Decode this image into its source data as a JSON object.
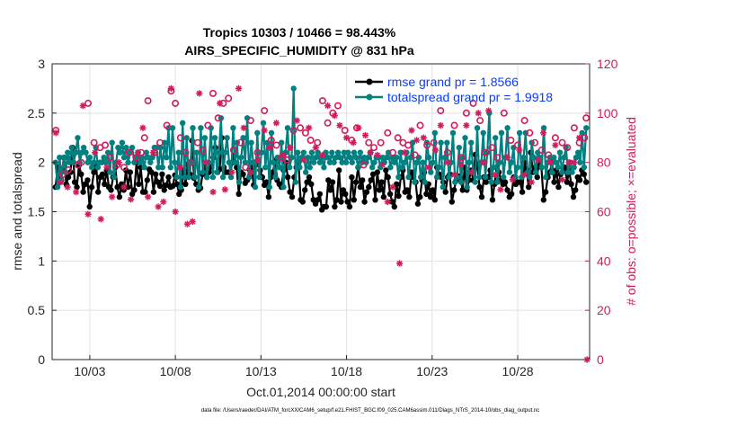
{
  "chart_data": {
    "type": "line",
    "title_line1": "Tropics 10303 / 10466 = 98.443%",
    "title_line2": "AIRS_SPECIFIC_HUMIDITY @ 831 hPa",
    "xlabel": "Oct.01,2014 00:00:00 start",
    "ylabel_left": "rmse and totalspread",
    "ylabel_right": "# of obs: o=possible; ×=evaluated",
    "footer": "data file: /Users/raeder/DAI/ATM_forcXX/CAM6_setup/f.e21.FHIST_BGC.f09_025.CAM6assim.011/Diags_NTrS_2014-10/obs_diag_output.nc",
    "xlim": [
      0.8,
      32.2
    ],
    "ylim_left": [
      0,
      3
    ],
    "ylim_right": [
      0,
      120
    ],
    "x_ticks": [
      {
        "x": 3,
        "label": "10/03"
      },
      {
        "x": 8,
        "label": "10/08"
      },
      {
        "x": 13,
        "label": "10/13"
      },
      {
        "x": 18,
        "label": "10/18"
      },
      {
        "x": 23,
        "label": "10/23"
      },
      {
        "x": 28,
        "label": "10/28"
      }
    ],
    "y_ticks_left": [
      {
        "v": 0,
        "label": "0"
      },
      {
        "v": 0.5,
        "label": "0.5"
      },
      {
        "v": 1,
        "label": "1"
      },
      {
        "v": 1.5,
        "label": "1.5"
      },
      {
        "v": 2,
        "label": "2"
      },
      {
        "v": 2.5,
        "label": "2.5"
      },
      {
        "v": 3,
        "label": "3"
      }
    ],
    "y_ticks_right": [
      {
        "v": 0,
        "label": "0"
      },
      {
        "v": 20,
        "label": "20"
      },
      {
        "v": 40,
        "label": "40"
      },
      {
        "v": 60,
        "label": "60"
      },
      {
        "v": 80,
        "label": "80"
      },
      {
        "v": 100,
        "label": "100"
      },
      {
        "v": 120,
        "label": "120"
      }
    ],
    "legend": [
      {
        "label": "rmse grand pr = 1.8566"
      },
      {
        "label": "totalspread grand pr = 1.9918"
      }
    ],
    "colors": {
      "rmse": "#000000",
      "totalspread": "#008080",
      "obs": "#d01c5b",
      "legend_text": "#0a3dff",
      "grid": "#e2e2e2"
    },
    "series": [
      {
        "name": "rmse",
        "values": [
          1.75,
          1.95,
          1.8,
          1.92,
          2.05,
          1.78,
          1.85,
          1.9,
          2.15,
          1.8,
          1.75,
          1.97,
          1.88,
          1.7,
          1.78,
          1.82,
          1.55,
          1.75,
          1.9,
          1.98,
          1.7,
          1.85,
          1.88,
          1.78,
          1.92,
          1.75,
          1.72,
          1.85,
          1.95,
          1.75,
          1.65,
          1.78,
          1.72,
          1.92,
          1.75,
          1.9,
          1.68,
          1.72,
          2.0,
          1.78,
          1.95,
          1.7,
          1.7,
          1.82,
          1.93,
          1.9,
          1.7,
          1.88,
          1.8,
          1.76,
          1.88,
          1.72,
          1.77,
          1.85,
          1.75,
          1.76,
          1.87,
          1.78,
          1.68,
          1.72,
          1.92,
          1.78,
          1.98,
          1.88,
          2.22,
          1.84,
          1.78,
          1.72,
          1.74,
          1.88,
          1.95,
          1.85,
          1.9,
          1.95,
          2.05,
          2.15,
          1.9,
          1.93,
          2.25,
          1.95,
          1.9,
          1.9,
          1.9,
          2.0,
          2.07,
          1.95,
          1.68,
          1.9,
          1.88,
          1.79,
          1.82,
          1.93,
          1.95,
          1.77,
          2.0,
          1.98,
          1.92,
          1.85,
          1.77,
          1.8,
          1.65,
          1.85,
          1.9,
          2.02,
          1.82,
          1.78,
          1.75,
          1.92,
          2.0,
          1.85,
          1.7,
          1.65,
          1.85,
          1.95,
          2.0,
          1.62,
          1.6,
          1.72,
          1.8,
          1.85,
          1.78,
          1.62,
          1.58,
          1.62,
          1.68,
          1.52,
          1.55,
          1.55,
          1.82,
          1.72,
          1.8,
          1.55,
          1.62,
          1.92,
          1.6,
          1.72,
          1.68,
          1.6,
          1.55,
          1.85,
          1.62,
          1.8,
          1.95,
          1.75,
          1.82,
          1.6,
          1.7,
          1.75,
          1.82,
          1.88,
          1.62,
          1.9,
          1.72,
          1.8,
          1.65,
          1.92,
          1.85,
          1.68,
          1.6,
          1.55,
          1.78,
          1.66,
          1.85,
          1.92,
          1.7,
          1.72,
          1.65,
          1.9,
          1.85,
          1.8,
          1.58,
          1.65,
          1.82,
          1.9,
          1.68,
          1.78,
          1.65,
          1.72,
          1.62,
          1.95,
          1.88,
          1.85,
          1.8,
          1.7,
          1.85,
          1.88,
          1.6,
          1.72,
          1.82,
          1.86,
          1.85,
          1.72,
          1.95,
          1.72,
          1.82,
          1.92,
          1.82,
          2.08,
          1.95,
          1.75,
          1.65,
          1.85,
          1.8,
          1.85,
          1.92,
          1.62,
          1.78,
          1.95,
          1.9,
          1.82,
          1.78,
          1.8,
          1.72,
          1.65,
          1.68,
          1.85,
          1.78,
          1.8,
          1.8,
          1.7,
          2.0,
          1.92,
          1.75,
          2.1,
          1.9,
          1.95,
          1.85,
          2.05,
          1.95,
          1.62,
          1.7,
          1.85,
          1.9,
          2.02,
          1.8,
          1.92,
          1.75,
          1.88,
          1.95,
          1.95,
          1.8,
          1.92,
          1.78,
          1.65,
          1.72,
          1.85,
          1.82,
          1.92,
          1.88,
          1.8
        ]
      },
      {
        "name": "totalspread",
        "values": [
          2.0,
          1.75,
          2.05,
          1.82,
          2.05,
          1.9,
          2.1,
          2.0,
          2.15,
          2.0,
          2.1,
          2.25,
          2.0,
          2.1,
          2.15,
          2.1,
          2.0,
          2.05,
          1.95,
          2.0,
          2.15,
          1.95,
          2.0,
          2.0,
          2.05,
          2.0,
          2.1,
          1.9,
          2.2,
          1.85,
          2.0,
          2.15,
          2.1,
          2.2,
          2.05,
          2.15,
          2.0,
          2.1,
          2.15,
          2.0,
          2.05,
          2.1,
          2.0,
          2.05,
          1.95,
          2.1,
          2.05,
          2.0,
          2.05,
          2.15,
          2.15,
          1.95,
          2.15,
          1.95,
          2.2,
          2.05,
          2.35,
          1.95,
          2.35,
          2.0,
          1.85,
          2.1,
          1.75,
          2.4,
          1.85,
          2.25,
          1.85,
          2.0,
          2.35,
          1.85,
          2.1,
          1.75,
          2.35,
          1.9,
          2.25,
          1.85,
          2.0,
          2.35,
          1.85,
          2.25,
          1.9,
          2.1,
          2.45,
          1.85,
          2.1,
          2.25,
          2.0,
          1.85,
          2.35,
          2.0,
          2.2,
          1.8,
          2.05,
          2.25,
          2.0,
          2.45,
          1.85,
          2.2,
          2.0,
          1.75,
          2.3,
          1.85,
          2.1,
          2.4,
          1.95,
          2.2,
          1.75,
          2.3,
          2.0,
          1.85,
          2.05,
          1.95,
          2.2,
          1.75,
          2.1,
          2.35,
          1.95,
          2.05,
          2.75,
          1.8,
          2.1,
          1.95,
          2.05,
          2.1,
          1.9,
          2.05,
          1.95,
          2.1,
          2.0,
          2.05,
          2.1,
          2.0,
          2.05,
          1.95,
          2.1,
          2.05,
          2.0,
          2.1,
          2.0,
          2.05,
          2.1,
          2.05,
          2.0,
          2.1,
          2.0,
          2.1,
          2.05,
          2.0,
          2.1,
          2.05,
          1.95,
          2.1,
          2.0,
          2.05,
          2.0,
          2.05,
          2.1,
          1.95,
          2.0,
          2.05,
          2.05,
          1.95,
          2.05,
          2.0,
          2.05,
          2.1,
          1.95,
          2.05,
          2.0,
          2.05,
          1.85,
          2.1,
          1.95,
          2.0,
          2.1,
          1.85,
          2.05,
          2.2,
          1.8,
          2.0,
          2.05,
          1.85,
          2.0,
          1.8,
          2.2,
          2.05,
          1.9,
          2.0,
          2.3,
          1.85,
          1.95,
          2.2,
          1.75,
          2.05,
          2.2,
          1.85,
          2.0,
          2.3,
          1.8,
          1.85,
          2.15,
          1.8,
          2.05,
          2.25,
          1.75,
          2.0,
          2.2,
          1.9,
          1.8,
          2.35,
          1.85,
          2.0,
          2.3,
          1.85,
          2.1,
          2.5,
          1.8,
          1.95,
          2.25,
          1.8,
          2.0,
          2.3,
          1.85,
          2.05,
          2.35,
          1.9,
          2.0,
          2.15,
          1.85,
          1.95,
          2.3,
          1.85,
          2.05,
          2.3,
          1.9,
          1.85,
          2.2,
          2.05,
          1.9,
          2.1,
          2.05,
          1.95,
          2.35,
          1.85,
          2.0,
          2.05,
          1.9,
          2.05,
          2.0,
          1.95,
          2.1,
          1.9,
          2.05,
          2.15,
          1.9,
          2.0,
          1.9,
          1.95,
          2.05,
          2.1,
          2.0,
          2.3,
          1.95,
          2.35
        ]
      }
    ],
    "obs_possible": [
      [
        1.02,
        93
      ],
      [
        1.4,
        75
      ],
      [
        1.75,
        77
      ],
      [
        2.3,
        79
      ],
      [
        2.5,
        80
      ],
      [
        2.9,
        104
      ],
      [
        3.25,
        88
      ],
      [
        3.6,
        86
      ],
      [
        3.9,
        87
      ],
      [
        4.2,
        82
      ],
      [
        4.6,
        79
      ],
      [
        5.0,
        78
      ],
      [
        5.3,
        84
      ],
      [
        5.7,
        82
      ],
      [
        6.0,
        84
      ],
      [
        6.2,
        90
      ],
      [
        6.4,
        105
      ],
      [
        6.8,
        84
      ],
      [
        7.1,
        88
      ],
      [
        7.5,
        95
      ],
      [
        7.75,
        109
      ],
      [
        8.0,
        104
      ],
      [
        8.3,
        90
      ],
      [
        8.6,
        84
      ],
      [
        8.9,
        80
      ],
      [
        9.3,
        88
      ],
      [
        9.6,
        85
      ],
      [
        9.9,
        95
      ],
      [
        10.2,
        108
      ],
      [
        10.5,
        98
      ],
      [
        10.8,
        104
      ],
      [
        11.1,
        106
      ],
      [
        11.4,
        85
      ],
      [
        11.8,
        88
      ],
      [
        12.1,
        78
      ],
      [
        12.4,
        97
      ],
      [
        12.8,
        84
      ],
      [
        13.2,
        101
      ],
      [
        13.6,
        89
      ],
      [
        13.9,
        87
      ],
      [
        14.2,
        82
      ],
      [
        14.5,
        81
      ],
      [
        14.9,
        93
      ],
      [
        15.3,
        94
      ],
      [
        15.6,
        92
      ],
      [
        15.9,
        89
      ],
      [
        16.3,
        88
      ],
      [
        16.6,
        105
      ],
      [
        16.9,
        96
      ],
      [
        17.2,
        100
      ],
      [
        17.5,
        103
      ],
      [
        17.9,
        93
      ],
      [
        18.3,
        89
      ],
      [
        18.6,
        94
      ],
      [
        19.0,
        79
      ],
      [
        19.3,
        88
      ],
      [
        19.6,
        86
      ],
      [
        20.0,
        88
      ],
      [
        20.4,
        92
      ],
      [
        20.7,
        84
      ],
      [
        21.0,
        90
      ],
      [
        21.3,
        88
      ],
      [
        21.6,
        87
      ],
      [
        22.0,
        83
      ],
      [
        22.3,
        95
      ],
      [
        22.7,
        87
      ],
      [
        23.1,
        88
      ],
      [
        23.5,
        101
      ],
      [
        23.9,
        84
      ],
      [
        24.3,
        95
      ],
      [
        24.7,
        82
      ],
      [
        25.0,
        100
      ],
      [
        25.4,
        104
      ],
      [
        25.8,
        97
      ],
      [
        26.1,
        84
      ],
      [
        26.5,
        86
      ],
      [
        26.8,
        82
      ],
      [
        27.2,
        100
      ],
      [
        27.6,
        89
      ],
      [
        28.0,
        87
      ],
      [
        28.4,
        97
      ],
      [
        28.7,
        92
      ],
      [
        29.0,
        88
      ],
      [
        29.4,
        85
      ],
      [
        29.8,
        83
      ],
      [
        30.2,
        90
      ],
      [
        30.6,
        88
      ],
      [
        30.9,
        86
      ],
      [
        31.3,
        94
      ],
      [
        31.6,
        88
      ],
      [
        31.9,
        90
      ],
      [
        32.0,
        98
      ]
    ],
    "obs_evaluated": [
      [
        1.02,
        92
      ],
      [
        1.3,
        72
      ],
      [
        1.7,
        70
      ],
      [
        2.2,
        68
      ],
      [
        2.6,
        103
      ],
      [
        2.9,
        59
      ],
      [
        3.3,
        84
      ],
      [
        3.65,
        57
      ],
      [
        4.0,
        78
      ],
      [
        4.3,
        66
      ],
      [
        4.7,
        80
      ],
      [
        5.0,
        70
      ],
      [
        5.4,
        65
      ],
      [
        5.8,
        84
      ],
      [
        6.1,
        94
      ],
      [
        6.4,
        66
      ],
      [
        6.7,
        84
      ],
      [
        7.0,
        62
      ],
      [
        7.3,
        64
      ],
      [
        7.75,
        110
      ],
      [
        8.0,
        60
      ],
      [
        8.3,
        78
      ],
      [
        8.7,
        55
      ],
      [
        9.0,
        56
      ],
      [
        9.4,
        108
      ],
      [
        9.8,
        80
      ],
      [
        10.2,
        68
      ],
      [
        10.6,
        104
      ],
      [
        10.9,
        69
      ],
      [
        11.3,
        76
      ],
      [
        11.7,
        110
      ],
      [
        12.0,
        94
      ],
      [
        12.4,
        76
      ],
      [
        12.8,
        81
      ],
      [
        13.2,
        93
      ],
      [
        13.5,
        86
      ],
      [
        13.9,
        96
      ],
      [
        14.3,
        83
      ],
      [
        14.7,
        86
      ],
      [
        15.1,
        97
      ],
      [
        15.5,
        81
      ],
      [
        15.8,
        94
      ],
      [
        16.2,
        86
      ],
      [
        16.6,
        83
      ],
      [
        16.9,
        103
      ],
      [
        17.3,
        99
      ],
      [
        17.6,
        95
      ],
      [
        18.0,
        90
      ],
      [
        18.4,
        88
      ],
      [
        18.7,
        94
      ],
      [
        19.1,
        91
      ],
      [
        19.4,
        84
      ],
      [
        19.8,
        83
      ],
      [
        20.1,
        79
      ],
      [
        20.4,
        64
      ],
      [
        20.7,
        70
      ],
      [
        21.1,
        39
      ],
      [
        21.4,
        84
      ],
      [
        21.8,
        93
      ],
      [
        22.1,
        89
      ],
      [
        22.5,
        90
      ],
      [
        22.8,
        78
      ],
      [
        23.2,
        85
      ],
      [
        23.5,
        95
      ],
      [
        23.9,
        80
      ],
      [
        24.3,
        75
      ],
      [
        24.7,
        79
      ],
      [
        25.0,
        95
      ],
      [
        25.3,
        76
      ],
      [
        25.7,
        100
      ],
      [
        26.0,
        80
      ],
      [
        26.3,
        101
      ],
      [
        26.7,
        75
      ],
      [
        27.0,
        69
      ],
      [
        27.4,
        82
      ],
      [
        27.7,
        73
      ],
      [
        28.1,
        85
      ],
      [
        28.4,
        75
      ],
      [
        28.8,
        72
      ],
      [
        29.2,
        81
      ],
      [
        29.5,
        92
      ],
      [
        29.9,
        80
      ],
      [
        30.2,
        87
      ],
      [
        30.6,
        73
      ],
      [
        31.0,
        80
      ],
      [
        31.3,
        80
      ],
      [
        31.6,
        90
      ],
      [
        32.05,
        0
      ]
    ]
  }
}
